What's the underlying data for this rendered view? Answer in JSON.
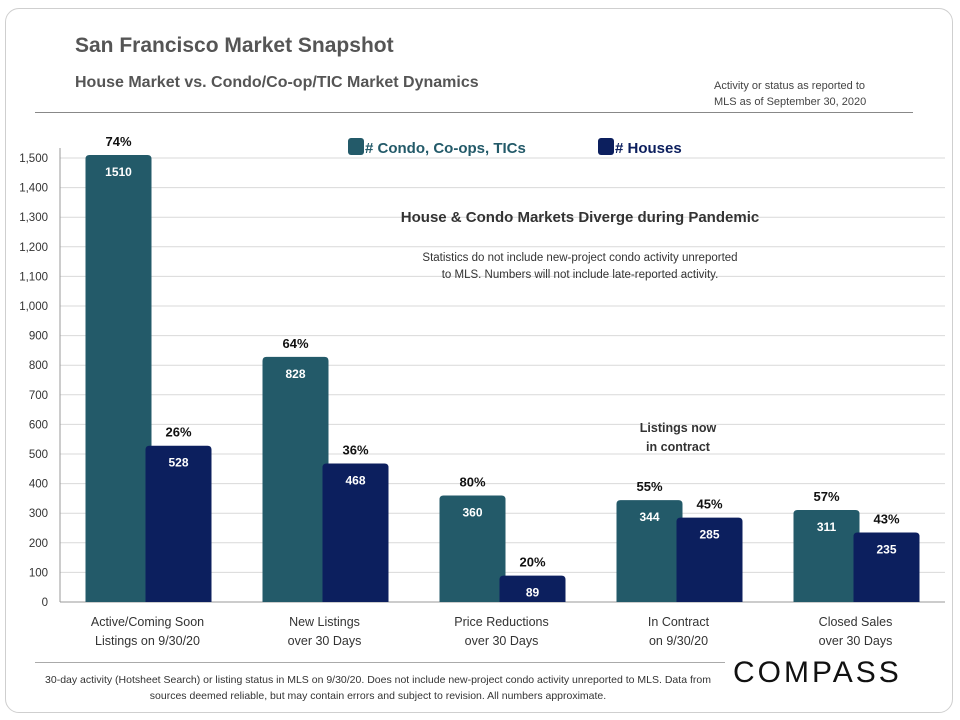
{
  "header": {
    "title": "San Francisco Market Snapshot",
    "subtitle": "House Market vs. Condo/Co-op/TIC  Market Dynamics",
    "as_of": [
      "Activity or status as reported to",
      "MLS as of September 30, 2020"
    ]
  },
  "footer": {
    "note": "30-day activity (Hotsheet Search) or listing status in MLS on 9/30/20. Does not include new-project condo activity unreported to MLS. Data from sources deemed reliable, but may contain errors and subject to revision. All numbers approximate.",
    "logo": "COMPASS"
  },
  "chart_data": {
    "type": "bar",
    "title": "House & Condo Markets Diverge during Pandemic",
    "annotation": [
      "Statistics do not include new-project condo activity unreported",
      "to MLS. Numbers will  not include late-reported activity."
    ],
    "callout": [
      "Listings now",
      "in contract"
    ],
    "categories": [
      [
        "Active/Coming Soon",
        "Listings on 9/30/20"
      ],
      [
        "New Listings",
        "over 30 Days"
      ],
      [
        "Price Reductions",
        "over 30 Days"
      ],
      [
        "In Contract",
        "on 9/30/20"
      ],
      [
        "Closed Sales",
        "over 30 Days"
      ]
    ],
    "series": [
      {
        "name": "# Condo, Co-ops, TICs",
        "color": "#235a69",
        "values": [
          1510,
          828,
          360,
          344,
          311
        ],
        "percent_labels": [
          "74%",
          "64%",
          "80%",
          "55%",
          "57%"
        ]
      },
      {
        "name": "# Houses",
        "color": "#0c1f5e",
        "values": [
          528,
          468,
          89,
          285,
          235
        ],
        "percent_labels": [
          "26%",
          "36%",
          "20%",
          "45%",
          "43%"
        ]
      }
    ],
    "ylim": [
      0,
      1500
    ],
    "yticks": [
      "0",
      "100",
      "200",
      "300",
      "400",
      "500",
      "600",
      "700",
      "800",
      "900",
      "1,000",
      "1,100",
      "1,200",
      "1,300",
      "1,400",
      "1,500"
    ],
    "grid": true,
    "legend": "top"
  }
}
